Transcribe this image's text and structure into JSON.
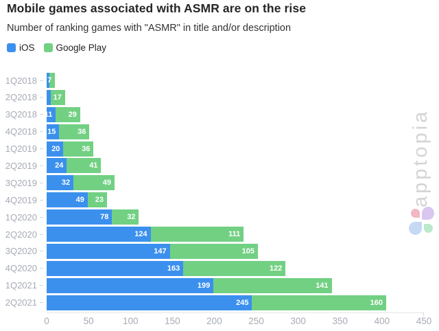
{
  "header": {
    "title": "Mobile games associated with ASMR are on the rise",
    "subtitle": "Number of ranking games with \"ASMR\" in title and/or description"
  },
  "legend": {
    "items": [
      {
        "label": "iOS",
        "color": "#3b90ee"
      },
      {
        "label": "Google Play",
        "color": "#72d083"
      }
    ]
  },
  "watermark": {
    "text": "apptopia"
  },
  "logo": {
    "name": "apptopia-clover-logo",
    "petal_colors": {
      "pink": "#f3b6c3",
      "lavender": "#d9c7f0",
      "blue": "#c5d9f4",
      "green": "#bbe9cb"
    }
  },
  "chart_data": {
    "type": "bar",
    "orientation": "horizontal",
    "stacked": true,
    "title": "Mobile games associated with ASMR are on the rise",
    "subtitle": "Number of ranking games with \"ASMR\" in title and/or description",
    "categories": [
      "1Q2018",
      "2Q2018",
      "3Q2018",
      "4Q2018",
      "1Q2019",
      "2Q2019",
      "3Q2019",
      "4Q2019",
      "1Q2020",
      "2Q2020",
      "3Q2020",
      "4Q2020",
      "1Q2021",
      "2Q2021"
    ],
    "series": [
      {
        "name": "iOS",
        "color": "#3b90ee",
        "values": [
          3,
          5,
          11,
          15,
          20,
          24,
          32,
          49,
          78,
          124,
          147,
          163,
          199,
          245
        ]
      },
      {
        "name": "Google Play",
        "color": "#72d083",
        "values": [
          7,
          17,
          29,
          36,
          36,
          41,
          49,
          23,
          32,
          111,
          105,
          122,
          141,
          160
        ]
      }
    ],
    "xlim": [
      0,
      450
    ],
    "xticks": [
      0,
      50,
      100,
      150,
      200,
      250,
      300,
      350,
      400,
      450
    ],
    "grid": false,
    "legend_position": "top-left",
    "value_labels": "white, bold, right-aligned inside each segment; hidden when segment too narrow (iOS 1Q2018 and 2Q2018 unlabeled in source, values estimated from bar length)"
  }
}
